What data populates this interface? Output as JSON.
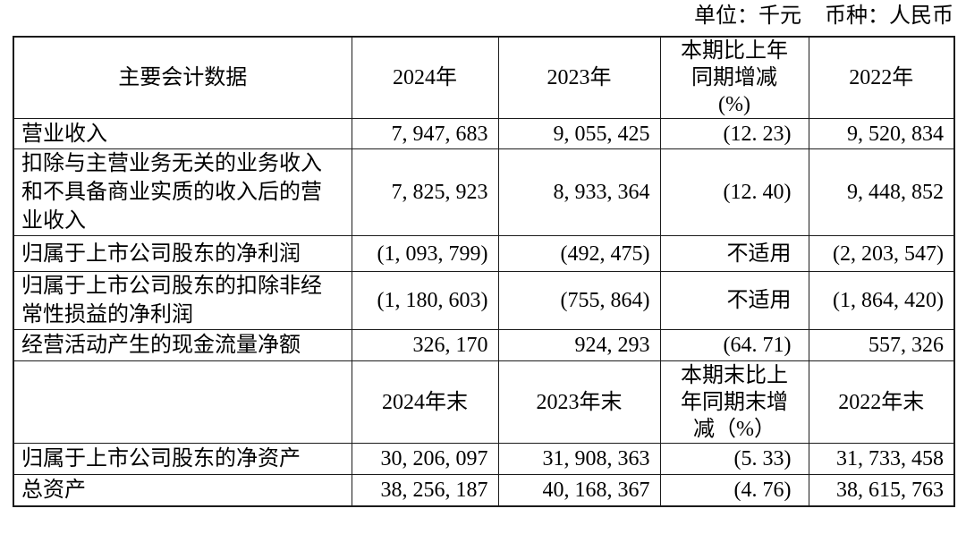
{
  "meta": {
    "unit_label": "单位：千元",
    "currency_label": "币种：人民币",
    "colors": {
      "background": "#ffffff",
      "text": "#000000",
      "border": "#1b1b1b"
    }
  },
  "table": {
    "title": "主要会计数据",
    "rows": [
      {
        "type": "header",
        "cells": [
          "主要会计数据",
          "2024年",
          "2023年",
          "本期比上年\n同期增减\n(%)",
          "2022年"
        ]
      },
      {
        "type": "data",
        "cells": [
          "营业收入",
          "7, 947, 683",
          "9, 055, 425",
          "(12. 23)",
          "9, 520, 834"
        ]
      },
      {
        "type": "data",
        "cells": [
          "扣除与主营业务无关的业务收入\n和不具备商业实质的收入后的营\n业收入",
          "7, 825, 923",
          "8, 933, 364",
          "(12. 40)",
          "9, 448, 852"
        ]
      },
      {
        "type": "data",
        "cells": [
          "归属于上市公司股东的净利润",
          "(1, 093, 799)",
          "(492, 475)",
          "不适用",
          "(2, 203, 547)"
        ]
      },
      {
        "type": "data",
        "cells": [
          "归属于上市公司股东的扣除非经\n常性损益的净利润",
          "(1, 180, 603)",
          "(755, 864)",
          "不适用",
          "(1, 864, 420)"
        ]
      },
      {
        "type": "data",
        "cells": [
          "经营活动产生的现金流量净额",
          "326, 170",
          "924, 293",
          "(64. 71)",
          "557, 326"
        ]
      },
      {
        "type": "header",
        "cells": [
          "",
          "2024年末",
          "2023年末",
          "本期末比上\n年同期末增\n减（%）",
          "2022年末"
        ]
      },
      {
        "type": "data",
        "cells": [
          "归属于上市公司股东的净资产",
          "30, 206, 097",
          "31, 908, 363",
          "(5. 33)",
          "31, 733, 458"
        ]
      },
      {
        "type": "data",
        "cells": [
          "总资产",
          "38, 256, 187",
          "40, 168, 367",
          "(4. 76)",
          "38, 615, 763"
        ]
      }
    ]
  }
}
